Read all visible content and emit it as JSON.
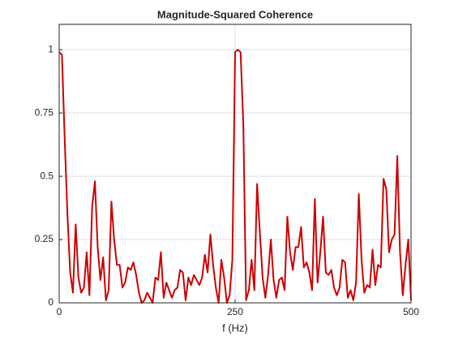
{
  "chart_data": {
    "type": "line",
    "title": "Magnitude-Squared Coherence",
    "xlabel": "f (Hz)",
    "xlim": [
      0,
      500
    ],
    "xticks": [
      0,
      250,
      500
    ],
    "ylim": [
      0,
      1.1
    ],
    "yticks": [
      0,
      0.25,
      0.5,
      0.75,
      1
    ],
    "grid": true,
    "x": [
      0,
      3.90625,
      7.8125,
      11.71875,
      15.625,
      19.53125,
      23.4375,
      27.34375,
      31.25,
      35.15625,
      39.0625,
      42.96875,
      46.875,
      50.78125,
      54.6875,
      58.59375,
      62.5,
      66.40625,
      70.3125,
      74.21875,
      78.125,
      82.03125,
      85.9375,
      89.84375,
      93.75,
      97.65625,
      101.5625,
      105.46875,
      109.375,
      113.28125,
      117.1875,
      121.09375,
      125,
      128.90625,
      132.8125,
      136.71875,
      140.625,
      144.53125,
      148.4375,
      152.34375,
      156.25,
      160.15625,
      164.0625,
      167.96875,
      171.875,
      175.78125,
      179.6875,
      183.59375,
      187.5,
      191.40625,
      195.3125,
      199.21875,
      203.125,
      207.03125,
      210.9375,
      214.84375,
      218.75,
      222.65625,
      226.5625,
      230.46875,
      234.375,
      238.28125,
      242.1875,
      246.09375,
      250,
      253.90625,
      257.8125,
      261.71875,
      265.625,
      269.53125,
      273.4375,
      277.34375,
      281.25,
      285.15625,
      289.0625,
      292.96875,
      296.875,
      300.78125,
      304.6875,
      308.59375,
      312.5,
      316.40625,
      320.3125,
      324.21875,
      328.125,
      332.03125,
      335.9375,
      339.84375,
      343.75,
      347.65625,
      351.5625,
      355.46875,
      359.375,
      363.28125,
      367.1875,
      371.09375,
      375,
      378.90625,
      382.8125,
      386.71875,
      390.625,
      394.53125,
      398.4375,
      402.34375,
      406.25,
      410.15625,
      414.0625,
      417.96875,
      421.875,
      425.78125,
      429.6875,
      433.59375,
      437.5,
      441.40625,
      445.3125,
      449.21875,
      453.125,
      457.03125,
      460.9375,
      464.84375,
      468.75,
      472.65625,
      476.5625,
      480.46875,
      484.375,
      488.28125,
      492.1875,
      496.09375,
      500
    ],
    "series": [
      {
        "color": "#cc0000",
        "values": [
          0.99,
          0.98,
          0.65,
          0.35,
          0.12,
          0.04,
          0.31,
          0.1,
          0.04,
          0.06,
          0.2,
          0.03,
          0.38,
          0.48,
          0.22,
          0.09,
          0.18,
          0.01,
          0.05,
          0.4,
          0.25,
          0.15,
          0.15,
          0.06,
          0.08,
          0.14,
          0.13,
          0.16,
          0.11,
          0.04,
          0.0,
          0.01,
          0.04,
          0.02,
          0.0,
          0.1,
          0.09,
          0.2,
          0.02,
          0.08,
          0.05,
          0.02,
          0.05,
          0.06,
          0.13,
          0.12,
          0.01,
          0.1,
          0.07,
          0.11,
          0.09,
          0.07,
          0.1,
          0.19,
          0.12,
          0.27,
          0.15,
          0.06,
          0.0,
          0.17,
          0.1,
          0.0,
          0.03,
          0.17,
          0.99,
          1.0,
          0.99,
          0.7,
          0.01,
          0.05,
          0.17,
          0.05,
          0.47,
          0.28,
          0.1,
          0.02,
          0.11,
          0.25,
          0.09,
          0.02,
          0.09,
          0.1,
          0.05,
          0.34,
          0.2,
          0.13,
          0.22,
          0.22,
          0.3,
          0.14,
          0.16,
          0.12,
          0.05,
          0.41,
          0.08,
          0.2,
          0.34,
          0.12,
          0.11,
          0.13,
          0.06,
          0.03,
          0.06,
          0.17,
          0.16,
          0.02,
          0.05,
          0.01,
          0.08,
          0.43,
          0.17,
          0.04,
          0.07,
          0.06,
          0.21,
          0.07,
          0.15,
          0.14,
          0.49,
          0.45,
          0.2,
          0.25,
          0.27,
          0.58,
          0.2,
          0.03,
          0.15,
          0.25,
          0.01
        ]
      }
    ]
  }
}
